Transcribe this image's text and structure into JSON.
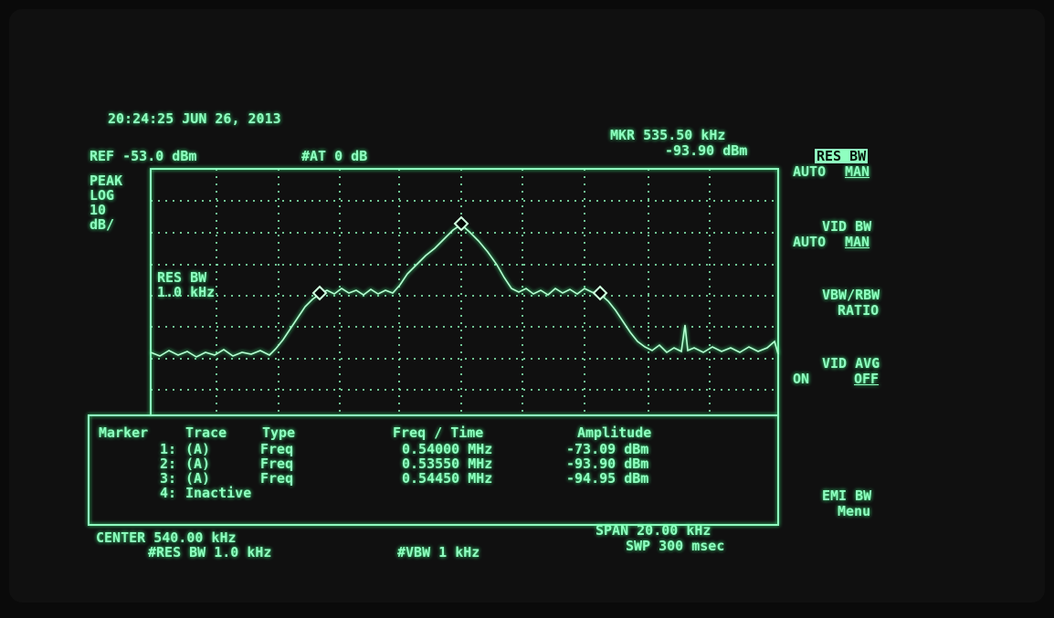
{
  "header": {
    "timestamp": "20:24:25 JUN 26, 2013",
    "reference": "REF -53.0 dBm",
    "attenuation": "#AT 0 dB",
    "marker_frequency": "MKR 535.50 kHz",
    "marker_amplitude": "-93.90 dBm"
  },
  "scale": [
    "PEAK",
    "LOG",
    "10",
    "dB/"
  ],
  "graticule_label": [
    "RES BW",
    "1.0 kHz"
  ],
  "softkeys": [
    {
      "label": "RES BW",
      "options": [
        "AUTO",
        "MAN"
      ]
    },
    {
      "label": "VID BW",
      "options": [
        "AUTO",
        "MAN"
      ]
    },
    {
      "label": "VBW/RBW",
      "sublabel": "RATIO"
    },
    {
      "label": "VID AVG",
      "options": [
        "ON",
        "OFF"
      ]
    },
    {
      "label": "EMI BW",
      "sublabel": "Menu"
    }
  ],
  "table": {
    "headers": [
      "Marker",
      "Trace",
      "Type",
      "Freq / Time",
      "Amplitude"
    ],
    "rows": [
      [
        "1:",
        "(A)",
        "Freq",
        "0.54000 MHz",
        "-73.09 dBm"
      ],
      [
        "2:",
        "(A)",
        "Freq",
        "0.53550 MHz",
        "-93.90 dBm"
      ],
      [
        "3:",
        "(A)",
        "Freq",
        "0.54450 MHz",
        "-94.95 dBm"
      ],
      [
        "4:",
        "Inactive"
      ]
    ]
  },
  "footer": {
    "center": "CENTER 540.00 kHz",
    "res_bw": "#RES BW 1.0 kHz",
    "vbw": "#VBW 1 kHz",
    "span": "SPAN 20.00 kHz",
    "sweep": "SWP 300 msec"
  }
}
